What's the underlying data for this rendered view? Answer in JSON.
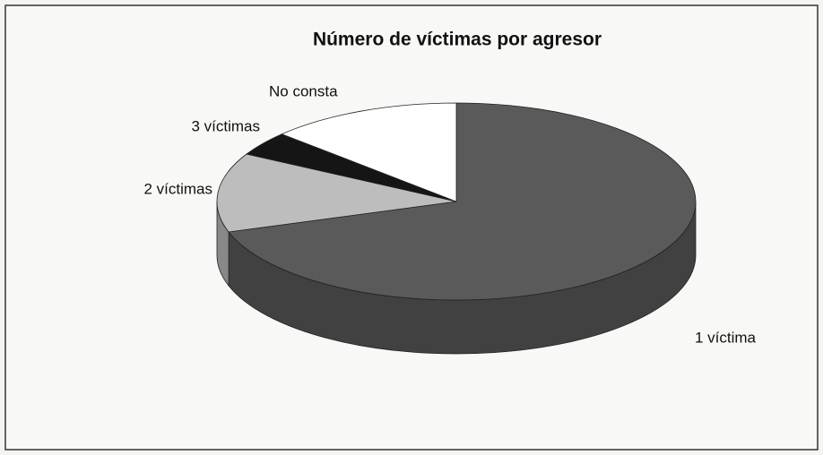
{
  "chart_data": {
    "type": "pie",
    "title": "Número de víctimas por agresor",
    "categories": [
      "1 víctima",
      "2 víctimas",
      "3 víctimas",
      "No consta"
    ],
    "values": [
      70,
      13,
      4,
      13
    ],
    "colors": [
      "#5a5a5a",
      "#bdbdbd",
      "#151515",
      "#ffffff"
    ]
  }
}
